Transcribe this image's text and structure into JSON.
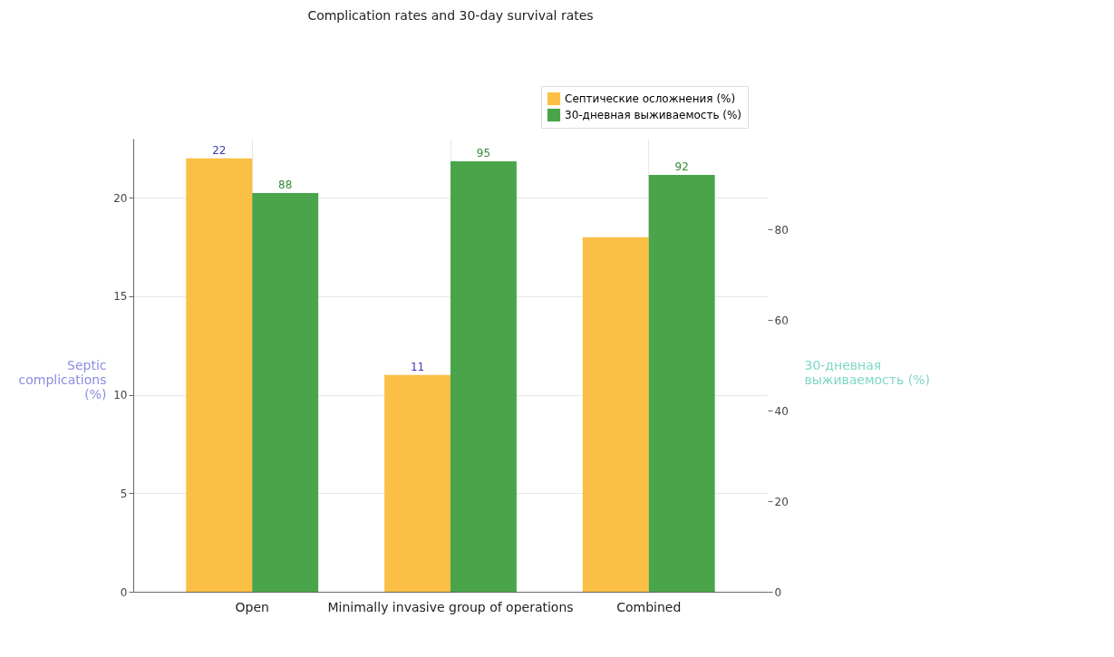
{
  "chart_data": {
    "type": "bar",
    "title": "Complication rates and 30-day survival rates",
    "categories": [
      "Open",
      "Minimally invasive group of operations",
      "Combined"
    ],
    "series": [
      {
        "name": "Септические осложнения (%)",
        "color": "#fbbf45",
        "values": [
          22,
          11,
          18
        ],
        "value_labels": [
          "22",
          "11",
          null
        ]
      },
      {
        "name": "30-дневная выживаемость (%)",
        "color": "#4aa54a",
        "values": [
          88,
          95,
          92
        ],
        "value_labels": [
          "88",
          "95",
          "92"
        ],
        "axis": "y2"
      }
    ],
    "ylabel": "Septic complications (%)",
    "y2label": "30-дневная выживаемость (%)",
    "ylim": [
      0,
      23
    ],
    "yticks": [
      0,
      5,
      10,
      15,
      20
    ],
    "y2lim": [
      0,
      100
    ],
    "y2ticks": [
      0,
      20,
      40,
      60,
      80
    ],
    "grid": true,
    "legend": "top right"
  }
}
